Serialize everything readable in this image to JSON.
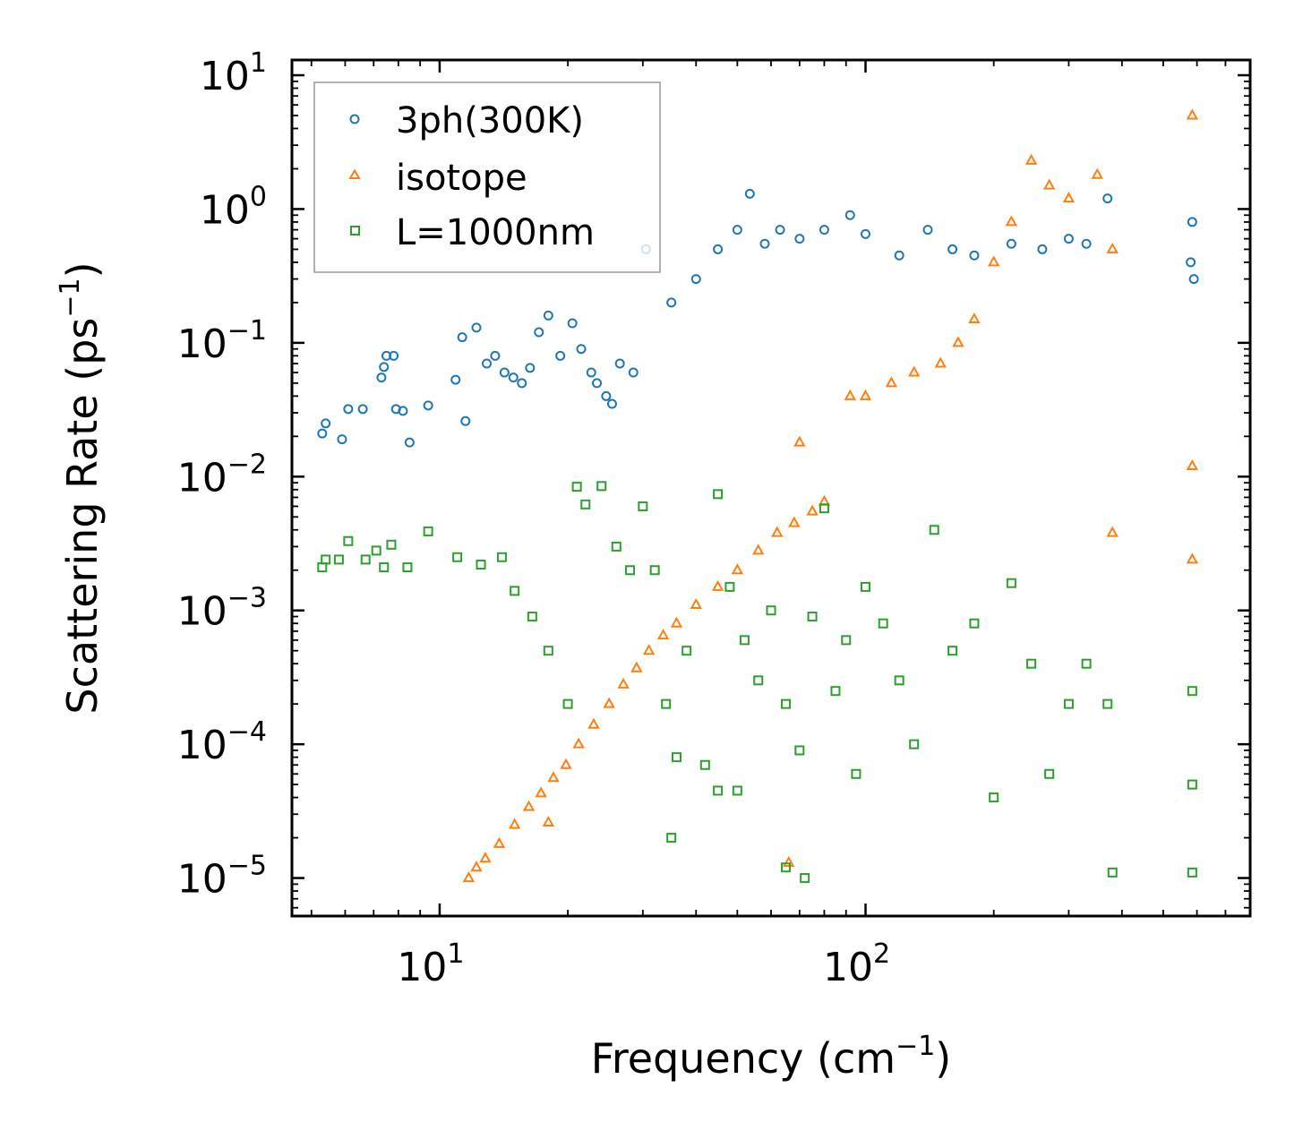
{
  "chart_data": {
    "type": "scatter",
    "title": "",
    "xlabel": "Frequency (cm",
    "xlabel_sup": "−1",
    "xlabel_suffix": ")",
    "ylabel": "Scattering Rate (ps",
    "ylabel_sup": "−1",
    "ylabel_suffix": ")",
    "xscale": "log",
    "yscale": "log",
    "xlim": [
      4.5,
      800
    ],
    "ylim": [
      5.2e-06,
      13
    ],
    "x_ticks": [
      {
        "value": 10,
        "base": "10",
        "exp": "1"
      },
      {
        "value": 100,
        "base": "10",
        "exp": "2"
      }
    ],
    "y_ticks": [
      {
        "value": 1e-05,
        "base": "10",
        "exp": "−5"
      },
      {
        "value": 0.0001,
        "base": "10",
        "exp": "−4"
      },
      {
        "value": 0.001,
        "base": "10",
        "exp": "−3"
      },
      {
        "value": 0.01,
        "base": "10",
        "exp": "−2"
      },
      {
        "value": 0.1,
        "base": "10",
        "exp": "−1"
      },
      {
        "value": 1,
        "base": "10",
        "exp": "0"
      },
      {
        "value": 10,
        "base": "10",
        "exp": "1"
      }
    ],
    "legend_position": "top-left",
    "series": [
      {
        "name": "3ph(300K)",
        "marker": "circle",
        "color": "#1f77b4",
        "points": [
          [
            5.3,
            0.021
          ],
          [
            5.4,
            0.025
          ],
          [
            5.9,
            0.019
          ],
          [
            6.1,
            0.032
          ],
          [
            6.6,
            0.032
          ],
          [
            7.3,
            0.055
          ],
          [
            7.4,
            0.066
          ],
          [
            7.5,
            0.08
          ],
          [
            7.8,
            0.08
          ],
          [
            7.9,
            0.032
          ],
          [
            8.2,
            0.031
          ],
          [
            8.5,
            0.018
          ],
          [
            9.4,
            0.034
          ],
          [
            10.9,
            0.053
          ],
          [
            11.5,
            0.026
          ],
          [
            11.3,
            0.11
          ],
          [
            12.2,
            0.13
          ],
          [
            12.9,
            0.07
          ],
          [
            13.5,
            0.08
          ],
          [
            14.2,
            0.06
          ],
          [
            14.9,
            0.055
          ],
          [
            15.6,
            0.05
          ],
          [
            16.3,
            0.065
          ],
          [
            17.1,
            0.12
          ],
          [
            18.0,
            0.16
          ],
          [
            19.2,
            0.08
          ],
          [
            20.5,
            0.14
          ],
          [
            21.5,
            0.09
          ],
          [
            22.7,
            0.06
          ],
          [
            23.4,
            0.05
          ],
          [
            24.6,
            0.04
          ],
          [
            25.4,
            0.035
          ],
          [
            26.5,
            0.07
          ],
          [
            28.5,
            0.06
          ],
          [
            30.5,
            0.5
          ],
          [
            35.0,
            0.2
          ],
          [
            40.0,
            0.3
          ],
          [
            45.0,
            0.5
          ],
          [
            50.0,
            0.7
          ],
          [
            53.5,
            1.3
          ],
          [
            58.0,
            0.55
          ],
          [
            63.0,
            0.7
          ],
          [
            70.0,
            0.6
          ],
          [
            80.0,
            0.7
          ],
          [
            92.0,
            0.9
          ],
          [
            100.0,
            0.65
          ],
          [
            120.0,
            0.45
          ],
          [
            140.0,
            0.7
          ],
          [
            160.0,
            0.5
          ],
          [
            180.0,
            0.45
          ],
          [
            220.0,
            0.55
          ],
          [
            260.0,
            0.5
          ],
          [
            300.0,
            0.6
          ],
          [
            330.0,
            0.55
          ],
          [
            370.0,
            1.2
          ],
          [
            580.0,
            0.4
          ],
          [
            585.0,
            0.8
          ],
          [
            590.0,
            0.3
          ]
        ]
      },
      {
        "name": "isotope",
        "marker": "triangle",
        "color": "#ff7f0e",
        "points": [
          [
            11.7,
            1e-05
          ],
          [
            12.2,
            1.2e-05
          ],
          [
            12.8,
            1.4e-05
          ],
          [
            13.8,
            1.8e-05
          ],
          [
            15.0,
            2.5e-05
          ],
          [
            16.2,
            3.4e-05
          ],
          [
            17.3,
            4.3e-05
          ],
          [
            18.5,
            5.6e-05
          ],
          [
            19.8,
            7e-05
          ],
          [
            21.2,
            0.0001
          ],
          [
            23.0,
            0.00014
          ],
          [
            25.0,
            0.0002
          ],
          [
            27.0,
            0.00028
          ],
          [
            29.0,
            0.00037
          ],
          [
            31.0,
            0.0005
          ],
          [
            33.5,
            0.00065
          ],
          [
            36.0,
            0.0008
          ],
          [
            40.0,
            0.0011
          ],
          [
            45.0,
            0.0015
          ],
          [
            50.0,
            0.002
          ],
          [
            56.0,
            0.0028
          ],
          [
            62.0,
            0.0038
          ],
          [
            68.0,
            0.0045
          ],
          [
            70.0,
            0.018
          ],
          [
            75.0,
            0.0055
          ],
          [
            80.0,
            0.0065
          ],
          [
            92.0,
            0.04
          ],
          [
            100.0,
            0.04
          ],
          [
            115.0,
            0.05
          ],
          [
            130.0,
            0.06
          ],
          [
            150.0,
            0.07
          ],
          [
            165.0,
            0.1
          ],
          [
            180.0,
            0.15
          ],
          [
            200.0,
            0.4
          ],
          [
            220.0,
            0.8
          ],
          [
            245.0,
            2.3
          ],
          [
            270.0,
            1.5
          ],
          [
            300.0,
            1.2
          ],
          [
            350.0,
            1.8
          ],
          [
            380.0,
            0.5
          ],
          [
            380.0,
            0.0038
          ],
          [
            585.0,
            5.0
          ],
          [
            585.0,
            0.012
          ],
          [
            585.0,
            0.0024
          ],
          [
            66.0,
            1.3e-05
          ],
          [
            18.0,
            2.6e-05
          ]
        ]
      },
      {
        "name": "L=1000nm",
        "marker": "square",
        "color": "#2ca02c",
        "points": [
          [
            5.3,
            0.0021
          ],
          [
            5.4,
            0.0024
          ],
          [
            5.8,
            0.0024
          ],
          [
            6.1,
            0.0033
          ],
          [
            6.7,
            0.0024
          ],
          [
            7.1,
            0.0028
          ],
          [
            7.4,
            0.0021
          ],
          [
            7.7,
            0.0031
          ],
          [
            8.4,
            0.0021
          ],
          [
            9.4,
            0.0039
          ],
          [
            11.0,
            0.0025
          ],
          [
            12.5,
            0.0022
          ],
          [
            14.0,
            0.0025
          ],
          [
            15.0,
            0.0014
          ],
          [
            16.5,
            0.0009
          ],
          [
            18.0,
            0.0005
          ],
          [
            20.0,
            0.0002
          ],
          [
            21.0,
            0.0084
          ],
          [
            22.0,
            0.0062
          ],
          [
            24.0,
            0.0085
          ],
          [
            26.0,
            0.003
          ],
          [
            28.0,
            0.002
          ],
          [
            30.0,
            0.006
          ],
          [
            32.0,
            0.002
          ],
          [
            34.0,
            0.0002
          ],
          [
            36.0,
            8e-05
          ],
          [
            38.0,
            0.0005
          ],
          [
            42.0,
            7e-05
          ],
          [
            45.0,
            0.0074
          ],
          [
            48.0,
            0.0015
          ],
          [
            52.0,
            0.0006
          ],
          [
            56.0,
            0.0003
          ],
          [
            60.0,
            0.001
          ],
          [
            65.0,
            0.0002
          ],
          [
            70.0,
            9e-05
          ],
          [
            75.0,
            0.0009
          ],
          [
            80.0,
            0.0058
          ],
          [
            85.0,
            0.00025
          ],
          [
            90.0,
            0.0006
          ],
          [
            95.0,
            6e-05
          ],
          [
            100.0,
            0.0015
          ],
          [
            110.0,
            0.0008
          ],
          [
            120.0,
            0.0003
          ],
          [
            130.0,
            0.0001
          ],
          [
            145.0,
            0.004
          ],
          [
            160.0,
            0.0005
          ],
          [
            180.0,
            0.0008
          ],
          [
            200.0,
            4e-05
          ],
          [
            220.0,
            0.0016
          ],
          [
            245.0,
            0.0004
          ],
          [
            270.0,
            6e-05
          ],
          [
            300.0,
            0.0002
          ],
          [
            330.0,
            0.0004
          ],
          [
            370.0,
            0.0002
          ],
          [
            380.0,
            1.1e-05
          ],
          [
            585.0,
            0.00025
          ],
          [
            585.0,
            5e-05
          ],
          [
            585.0,
            1.1e-05
          ],
          [
            45.0,
            4.5e-05
          ],
          [
            50.0,
            4.5e-05
          ],
          [
            35.0,
            2e-05
          ],
          [
            65.0,
            1.2e-05
          ],
          [
            72.0,
            1e-05
          ]
        ]
      }
    ]
  }
}
